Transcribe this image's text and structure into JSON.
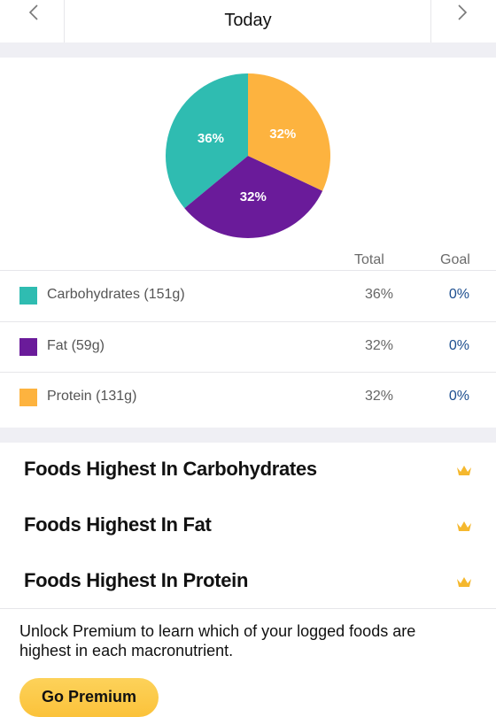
{
  "header": {
    "title": "Today"
  },
  "chart_data": {
    "type": "pie",
    "categories": [
      "Carbohydrates (151g)",
      "Fat (59g)",
      "Protein (131g)"
    ],
    "values": [
      36,
      32,
      32
    ],
    "value_labels": [
      "36%",
      "32%",
      "32%"
    ],
    "colors": [
      "#2fbcb1",
      "#6a1b9a",
      "#fdb33f"
    ],
    "start_angle": 90,
    "counterclockwise": true
  },
  "table": {
    "headers": [
      "Total",
      "Goal"
    ],
    "goal": [
      "0%",
      "0%",
      "0%"
    ]
  },
  "foods": [
    "Foods Highest In Carbohydrates",
    "Foods Highest In Fat",
    "Foods Highest In Protein"
  ],
  "premium": {
    "text": "Unlock Premium to learn which of your logged foods are highest in each macronutrient.",
    "button": "Go Premium"
  }
}
